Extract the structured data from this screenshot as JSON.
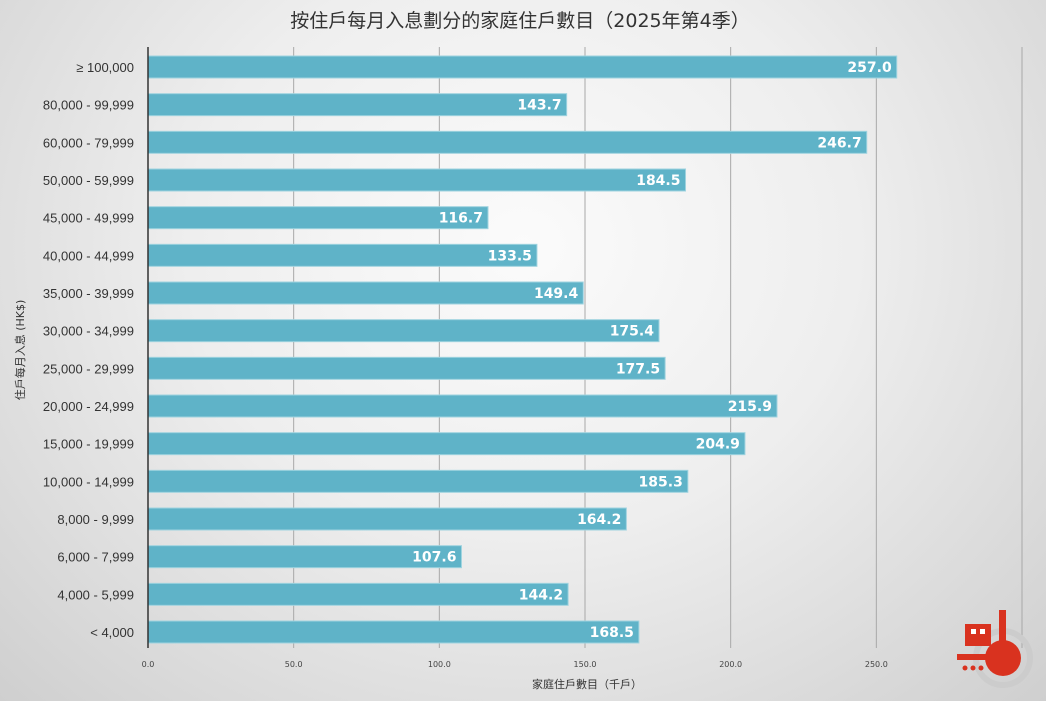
{
  "chart_data": {
    "type": "bar",
    "orientation": "horizontal",
    "title": "按住戶每月入息劃分的家庭住戶數目（2025年第4季）",
    "xlabel": "家庭住戶數目（千戶）",
    "ylabel": "住戶每月入息 (HK$)",
    "xlim": [
      0,
      300
    ],
    "xticks": [
      "0.0",
      "50.0",
      "100.0",
      "150.0",
      "200.0",
      "250.0"
    ],
    "grid": true,
    "bar_color": "#5fb3c8",
    "categories": [
      "≥ 100,000",
      "80,000 - 99,999",
      "60,000 - 79,999",
      "50,000 - 59,999",
      "45,000 - 49,999",
      "40,000 - 44,999",
      "35,000 - 39,999",
      "30,000 - 34,999",
      "25,000 - 29,999",
      "20,000 - 24,999",
      "15,000 - 19,999",
      "10,000 - 14,999",
      "8,000 - 9,999",
      "6,000 - 7,999",
      "4,000 - 5,999",
      "< 4,000"
    ],
    "values": [
      257.0,
      143.7,
      246.7,
      184.5,
      116.7,
      133.5,
      149.4,
      175.4,
      177.5,
      215.9,
      204.9,
      185.3,
      164.2,
      107.6,
      144.2,
      168.5
    ],
    "labels": [
      "257.0",
      "143.7",
      "246.7",
      "184.5",
      "116.7",
      "133.5",
      "149.4",
      "175.4",
      "177.5",
      "215.9",
      "204.9",
      "185.3",
      "164.2",
      "107.6",
      "144.2",
      "168.5"
    ]
  }
}
